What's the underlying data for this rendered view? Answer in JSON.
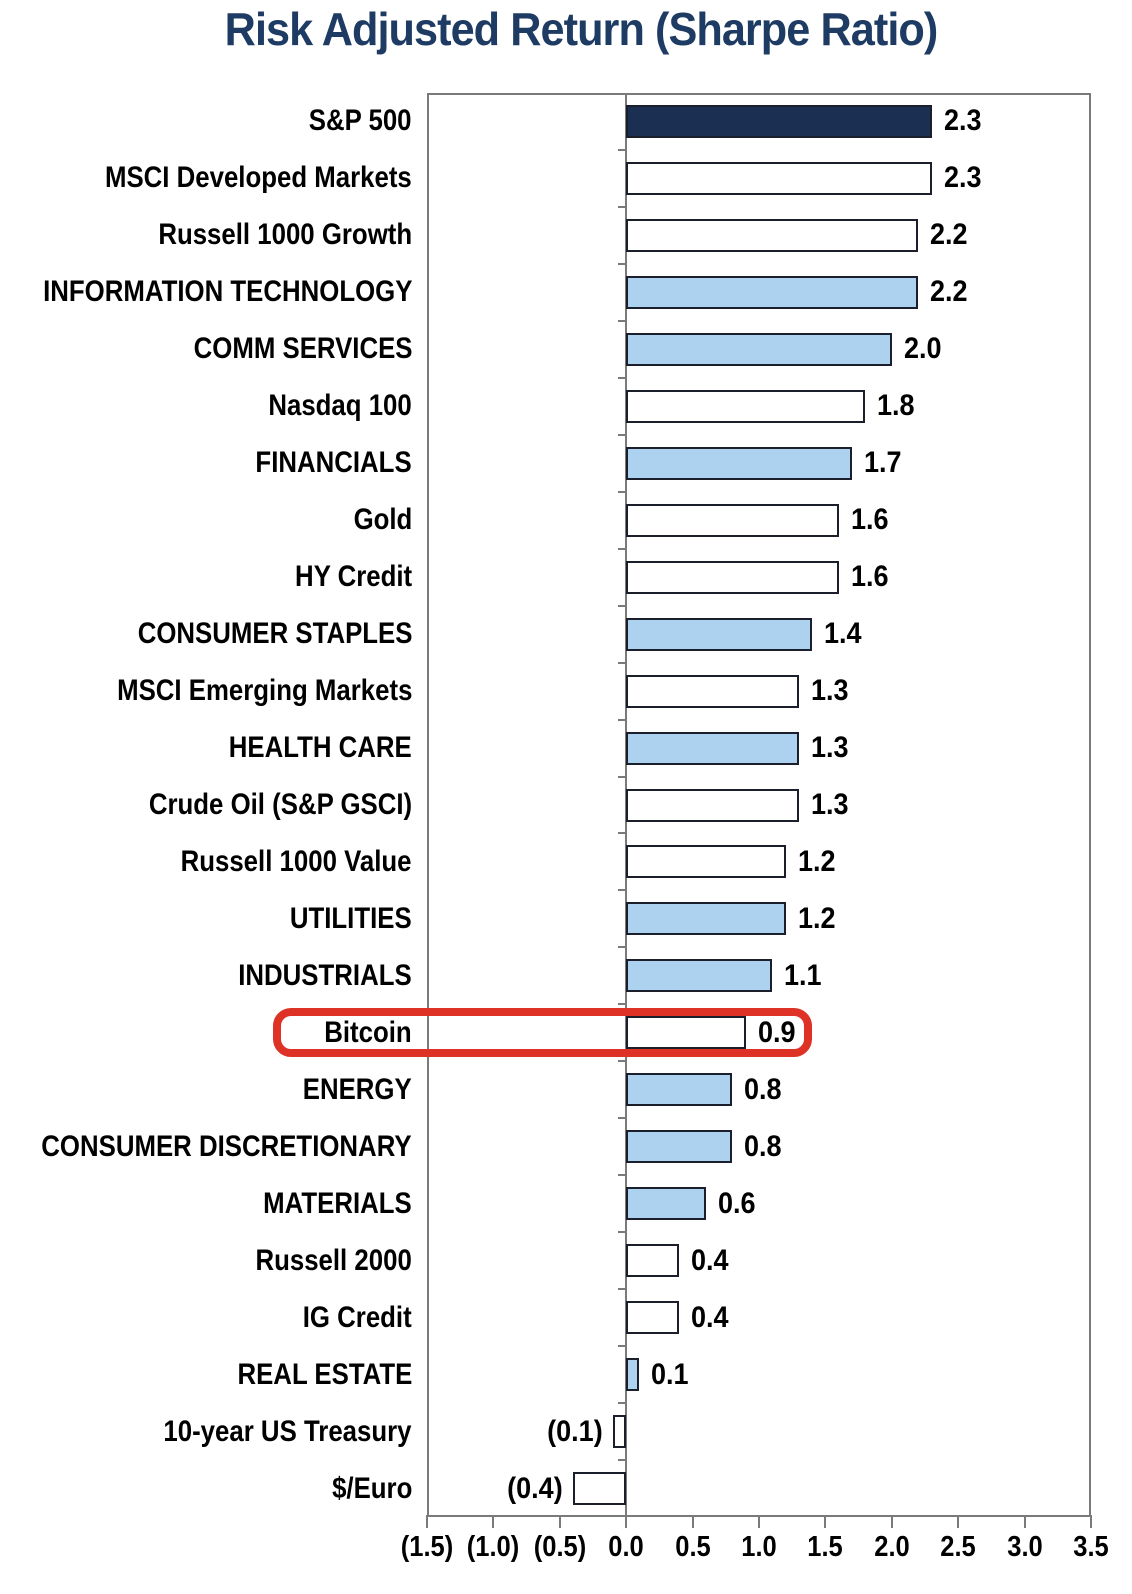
{
  "title": "Risk Adjusted Return (Sharpe Ratio)",
  "chart_data": {
    "type": "bar",
    "orientation": "horizontal",
    "title": "Risk Adjusted Return (Sharpe Ratio)",
    "xlabel": "",
    "ylabel": "",
    "xlim": [
      -1.5,
      3.5
    ],
    "x_tick_values": [
      -1.5,
      -1.0,
      -0.5,
      0.0,
      0.5,
      1.0,
      1.5,
      2.0,
      2.5,
      3.0,
      3.5
    ],
    "x_tick_labels": [
      "(1.5)",
      "(1.0)",
      "(0.5)",
      "0.0",
      "0.5",
      "1.0",
      "1.5",
      "2.0",
      "2.5",
      "3.0",
      "3.5"
    ],
    "grid": false,
    "legend": false,
    "bars": [
      {
        "label": "S&P 500",
        "value": 2.3,
        "display": "2.3",
        "color": "navy"
      },
      {
        "label": "MSCI Developed Markets",
        "value": 2.3,
        "display": "2.3",
        "color": "white"
      },
      {
        "label": "Russell 1000 Growth",
        "value": 2.2,
        "display": "2.2",
        "color": "white"
      },
      {
        "label": "INFORMATION TECHNOLOGY",
        "value": 2.2,
        "display": "2.2",
        "color": "lightblue"
      },
      {
        "label": "COMM SERVICES",
        "value": 2.0,
        "display": "2.0",
        "color": "lightblue"
      },
      {
        "label": "Nasdaq 100",
        "value": 1.8,
        "display": "1.8",
        "color": "white"
      },
      {
        "label": "FINANCIALS",
        "value": 1.7,
        "display": "1.7",
        "color": "lightblue"
      },
      {
        "label": "Gold",
        "value": 1.6,
        "display": "1.6",
        "color": "white"
      },
      {
        "label": "HY Credit",
        "value": 1.6,
        "display": "1.6",
        "color": "white"
      },
      {
        "label": "CONSUMER STAPLES",
        "value": 1.4,
        "display": "1.4",
        "color": "lightblue"
      },
      {
        "label": "MSCI Emerging Markets",
        "value": 1.3,
        "display": "1.3",
        "color": "white"
      },
      {
        "label": "HEALTH CARE",
        "value": 1.3,
        "display": "1.3",
        "color": "lightblue"
      },
      {
        "label": "Crude Oil (S&P GSCI)",
        "value": 1.3,
        "display": "1.3",
        "color": "white"
      },
      {
        "label": "Russell 1000 Value",
        "value": 1.2,
        "display": "1.2",
        "color": "white"
      },
      {
        "label": "UTILITIES",
        "value": 1.2,
        "display": "1.2",
        "color": "lightblue"
      },
      {
        "label": "INDUSTRIALS",
        "value": 1.1,
        "display": "1.1",
        "color": "lightblue"
      },
      {
        "label": "Bitcoin",
        "value": 0.9,
        "display": "0.9",
        "color": "white",
        "highlighted": true
      },
      {
        "label": "ENERGY",
        "value": 0.8,
        "display": "0.8",
        "color": "lightblue"
      },
      {
        "label": "CONSUMER DISCRETIONARY",
        "value": 0.8,
        "display": "0.8",
        "color": "lightblue"
      },
      {
        "label": "MATERIALS",
        "value": 0.6,
        "display": "0.6",
        "color": "lightblue"
      },
      {
        "label": "Russell 2000",
        "value": 0.4,
        "display": "0.4",
        "color": "white"
      },
      {
        "label": "IG Credit",
        "value": 0.4,
        "display": "0.4",
        "color": "white"
      },
      {
        "label": "REAL ESTATE",
        "value": 0.1,
        "display": "0.1",
        "color": "lightblue"
      },
      {
        "label": "10-year US Treasury",
        "value": -0.1,
        "display": "(0.1)",
        "color": "white"
      },
      {
        "label": "$/Euro",
        "value": -0.4,
        "display": "(0.4)",
        "color": "white"
      }
    ],
    "highlight": {
      "label": "Bitcoin",
      "shape": "rounded-rect",
      "color": "#de3226"
    }
  },
  "colors": {
    "navy": "#1b2f52",
    "lightblue": "#acd2ef",
    "white": "#ffffff",
    "bar_border": "#1a1f2b",
    "axis_gray": "#7a7a7a",
    "title_navy": "#1e3b63",
    "value_text": "#000000",
    "highlight_red": "#de3226"
  }
}
